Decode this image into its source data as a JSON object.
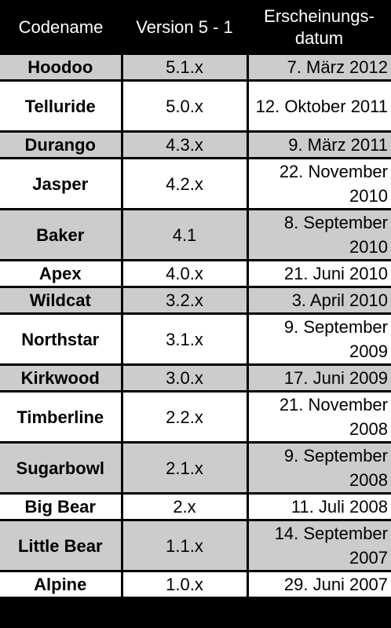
{
  "headers": {
    "codename": "Codename",
    "version": "Version 5 - 1",
    "date": "Erscheinungs-datum"
  },
  "rows": [
    {
      "codename": "Hoodoo",
      "version": "5.1.x",
      "date": "7. März 2012",
      "shade": true,
      "lines": 1
    },
    {
      "codename": "Telluride",
      "version": "5.0.x",
      "date": "12. Oktober 2011",
      "shade": false,
      "lines": 2
    },
    {
      "codename": "Durango",
      "version": "4.3.x",
      "date": "9. März 2011",
      "shade": true,
      "lines": 1
    },
    {
      "codename": "Jasper",
      "version": "4.2.x",
      "date": "22. November 2010",
      "shade": false,
      "lines": 2
    },
    {
      "codename": "Baker",
      "version": "4.1",
      "date": "8. September 2010",
      "shade": true,
      "lines": 2
    },
    {
      "codename": "Apex",
      "version": "4.0.x",
      "date": "21. Juni 2010",
      "shade": false,
      "lines": 1
    },
    {
      "codename": "Wildcat",
      "version": "3.2.x",
      "date": "3. April 2010",
      "shade": true,
      "lines": 1
    },
    {
      "codename": "Northstar",
      "version": "3.1.x",
      "date": "9. September 2009",
      "shade": false,
      "lines": 2
    },
    {
      "codename": "Kirkwood",
      "version": "3.0.x",
      "date": "17. Juni 2009",
      "shade": true,
      "lines": 1
    },
    {
      "codename": "Timberline",
      "version": "2.2.x",
      "date": "21. November 2008",
      "shade": false,
      "lines": 2
    },
    {
      "codename": "Sugarbowl",
      "version": "2.1.x",
      "date": "9. September 2008",
      "shade": true,
      "lines": 2
    },
    {
      "codename": "Big Bear",
      "version": "2.x",
      "date": "11. Juli 2008",
      "shade": false,
      "lines": 1
    },
    {
      "codename": "Little Bear",
      "version": "1.1.x",
      "date": "14. September 2007",
      "shade": true,
      "lines": 2
    },
    {
      "codename": "Alpine",
      "version": "1.0.x",
      "date": "29. Juni 2007",
      "shade": false,
      "lines": 1
    }
  ]
}
